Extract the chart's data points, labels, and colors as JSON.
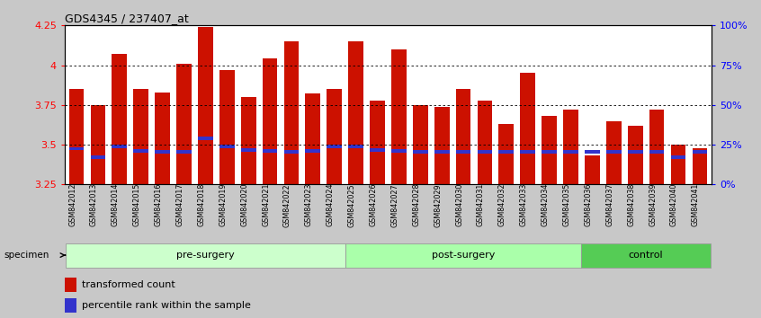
{
  "title": "GDS4345 / 237407_at",
  "samples": [
    "GSM842012",
    "GSM842013",
    "GSM842014",
    "GSM842015",
    "GSM842016",
    "GSM842017",
    "GSM842018",
    "GSM842019",
    "GSM842020",
    "GSM842021",
    "GSM842022",
    "GSM842023",
    "GSM842024",
    "GSM842025",
    "GSM842026",
    "GSM842027",
    "GSM842028",
    "GSM842029",
    "GSM842030",
    "GSM842031",
    "GSM842032",
    "GSM842033",
    "GSM842034",
    "GSM842035",
    "GSM842036",
    "GSM842037",
    "GSM842038",
    "GSM842039",
    "GSM842040",
    "GSM842041"
  ],
  "red_values": [
    3.85,
    3.75,
    4.07,
    3.85,
    3.83,
    4.01,
    4.24,
    3.97,
    3.8,
    4.04,
    4.15,
    3.82,
    3.85,
    4.15,
    3.78,
    4.1,
    3.75,
    3.74,
    3.85,
    3.78,
    3.63,
    3.95,
    3.68,
    3.72,
    3.43,
    3.65,
    3.62,
    3.72,
    3.5,
    3.48
  ],
  "blue_values": [
    3.475,
    3.42,
    3.49,
    3.46,
    3.455,
    3.455,
    3.54,
    3.49,
    3.465,
    3.46,
    3.455,
    3.46,
    3.49,
    3.49,
    3.465,
    3.46,
    3.455,
    3.455,
    3.455,
    3.455,
    3.455,
    3.455,
    3.455,
    3.455,
    3.455,
    3.455,
    3.455,
    3.455,
    3.42,
    3.455
  ],
  "groups": [
    {
      "label": "pre-surgery",
      "start": 0,
      "end": 13,
      "color": "#ccffcc"
    },
    {
      "label": "post-surgery",
      "start": 13,
      "end": 24,
      "color": "#aaffaa"
    },
    {
      "label": "control",
      "start": 24,
      "end": 30,
      "color": "#55cc55"
    }
  ],
  "ymin": 3.25,
  "ymax": 4.25,
  "yticks": [
    3.25,
    3.5,
    3.75,
    4.0,
    4.25
  ],
  "y2ticks": [
    0,
    25,
    50,
    75,
    100
  ],
  "y2labels": [
    "0%",
    "25%",
    "50%",
    "75%",
    "100%"
  ],
  "bar_color": "#cc1100",
  "blue_color": "#3333cc",
  "plot_bg": "#ffffff",
  "fig_bg": "#c8c8c8",
  "tick_area_bg": "#c8c8c8",
  "legend_red": "transformed count",
  "legend_blue": "percentile rank within the sample",
  "bar_width": 0.7
}
